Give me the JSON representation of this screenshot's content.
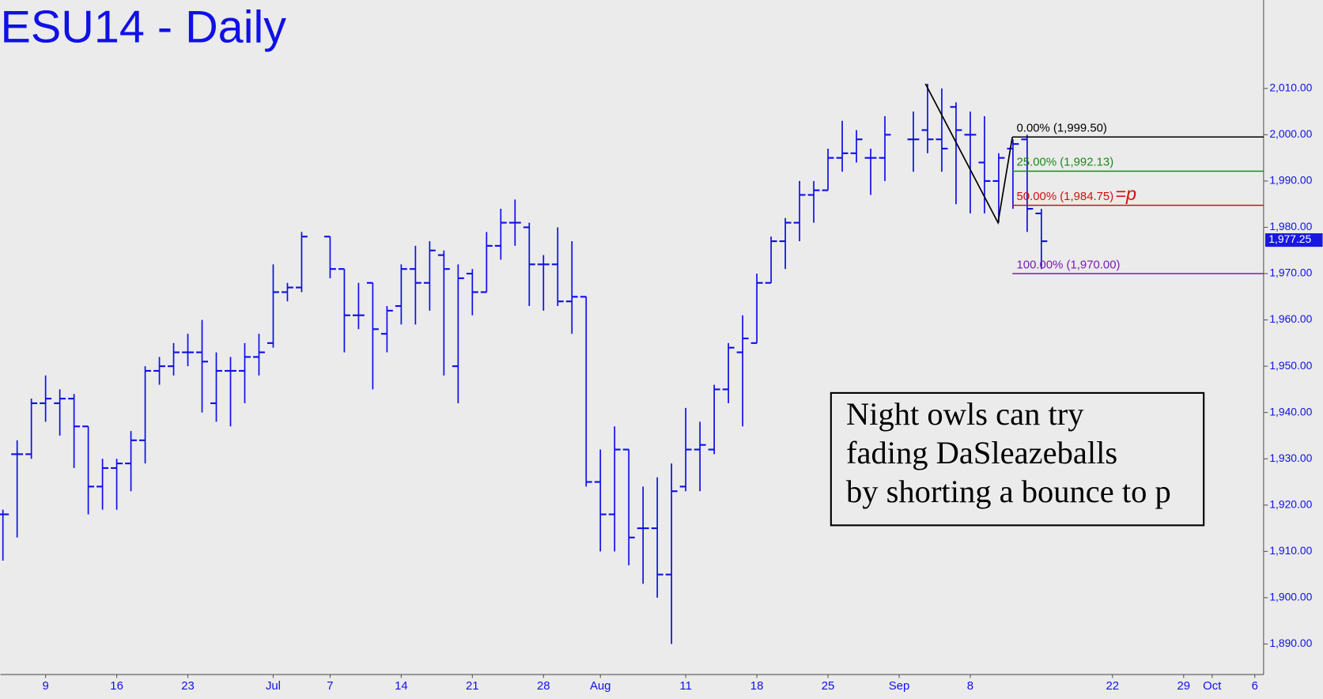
{
  "chart_data": {
    "type": "ohlc",
    "title": "ESU14 - Daily",
    "color": "#1010e8",
    "x": [
      0,
      1,
      2,
      3,
      4,
      5,
      6,
      7,
      8,
      9,
      10,
      11,
      12,
      13,
      14,
      15,
      16,
      17,
      18,
      19,
      20,
      21,
      23,
      24,
      25,
      26,
      27,
      28,
      29,
      30,
      31,
      32,
      33,
      34,
      35,
      36,
      37,
      38,
      39,
      40,
      41,
      42,
      43,
      44,
      45,
      46,
      47,
      48,
      49,
      50,
      51,
      52,
      53,
      54,
      55,
      56,
      57,
      58,
      59,
      60,
      61,
      62,
      64,
      65,
      66,
      67,
      68,
      69,
      70,
      71,
      72,
      73
    ],
    "open": [
      1918,
      1931,
      1931,
      1942,
      1942,
      1943,
      1937,
      1924,
      1928,
      1929,
      1934,
      1949,
      1950,
      1953,
      1953,
      1942,
      1949,
      1949,
      1952,
      1955,
      1966,
      1967,
      1978,
      1971,
      1961,
      1968,
      1957,
      1963,
      1971,
      1968,
      1974,
      1950,
      1970,
      1966,
      1976,
      1981,
      1980,
      1972,
      1972,
      1964,
      1965,
      1925,
      1918,
      1932,
      1915,
      1915,
      1905,
      1924,
      1932,
      1932,
      1945,
      1953,
      1955,
      1968,
      1977,
      1981,
      1987,
      1988,
      1995,
      1996,
      1995,
      1995,
      1999,
      2001,
      1999,
      2006,
      2000,
      1994,
      1990,
      1997,
      1999,
      1983
    ],
    "high": [
      1919,
      1934,
      1943,
      1948,
      1945,
      1944,
      1937,
      1930,
      1930,
      1936,
      1950,
      1952,
      1955,
      1957,
      1960,
      1953,
      1952,
      1955,
      1957,
      1972,
      1968,
      1979,
      1978,
      1971,
      1968,
      1968,
      1963,
      1972,
      1976,
      1977,
      1975,
      1972,
      1971,
      1979,
      1984,
      1986,
      1981,
      1974,
      1980,
      1977,
      1965,
      1932,
      1937,
      1932,
      1924,
      1926,
      1929,
      1941,
      1938,
      1946,
      1955,
      1961,
      1970,
      1978,
      1982,
      1990,
      1990,
      1997,
      2003,
      2001,
      1997,
      2004,
      2005,
      2011,
      2010,
      2007,
      2005,
      2004,
      1996,
      1999,
      2000,
      1984
    ],
    "low": [
      1908,
      1913,
      1930,
      1938,
      1935,
      1928,
      1918,
      1919,
      1919,
      1923,
      1929,
      1946,
      1948,
      1950,
      1940,
      1938,
      1937,
      1942,
      1948,
      1954,
      1964,
      1966,
      1969,
      1953,
      1958,
      1945,
      1953,
      1959,
      1959,
      1962,
      1948,
      1942,
      1961,
      1966,
      1973,
      1976,
      1963,
      1962,
      1963,
      1957,
      1924,
      1910,
      1910,
      1907,
      1903,
      1900,
      1890,
      1923,
      1923,
      1931,
      1942,
      1937,
      1955,
      1968,
      1971,
      1977,
      1981,
      1988,
      1992,
      1994,
      1987,
      1990,
      1992,
      1996,
      1992,
      1985,
      1983,
      1983,
      1981,
      1984,
      1979,
      1971
    ],
    "close": [
      1918,
      1931,
      1942,
      1943,
      1943,
      1937,
      1924,
      1928,
      1929,
      1934,
      1949,
      1950,
      1953,
      1953,
      1951,
      1949,
      1949,
      1952,
      1953,
      1966,
      1967,
      1978,
      1971,
      1961,
      1961,
      1958,
      1962,
      1971,
      1968,
      1975,
      1971,
      1969,
      1966,
      1976,
      1981,
      1981,
      1972,
      1972,
      1964,
      1965,
      1925,
      1918,
      1932,
      1913,
      1915,
      1905,
      1923,
      1932,
      1933,
      1945,
      1954,
      1956,
      1968,
      1977,
      1981,
      1987,
      1988,
      1995,
      1996,
      1999,
      1995,
      2000,
      1999,
      1999,
      1997,
      2001,
      2000,
      1990,
      1995,
      1998,
      1984,
      1977
    ],
    "xlim": [
      -0.178,
      88.62
    ],
    "ylim": [
      1883.4,
      2029.1
    ],
    "xticks": [
      {
        "value": 3,
        "label": "9"
      },
      {
        "value": 8,
        "label": "16"
      },
      {
        "value": 13,
        "label": "23"
      },
      {
        "value": 19,
        "label": "Jul"
      },
      {
        "value": 23,
        "label": "7"
      },
      {
        "value": 28,
        "label": "14"
      },
      {
        "value": 33,
        "label": "21"
      },
      {
        "value": 38,
        "label": "28"
      },
      {
        "value": 42,
        "label": "Aug"
      },
      {
        "value": 48,
        "label": "11"
      },
      {
        "value": 53,
        "label": "18"
      },
      {
        "value": 58,
        "label": "25"
      },
      {
        "value": 63,
        "label": "Sep"
      },
      {
        "value": 68,
        "label": "8"
      },
      {
        "value": 78,
        "label": "22"
      },
      {
        "value": 83,
        "label": "29"
      },
      {
        "value": 85,
        "label": "Oct"
      },
      {
        "value": 88,
        "label": "6"
      }
    ],
    "yticks": [
      {
        "value": 1890,
        "label": "1,890.00"
      },
      {
        "value": 1900,
        "label": "1,900.00"
      },
      {
        "value": 1910,
        "label": "1,910.00"
      },
      {
        "value": 1920,
        "label": "1,920.00"
      },
      {
        "value": 1930,
        "label": "1,930.00"
      },
      {
        "value": 1940,
        "label": "1,940.00"
      },
      {
        "value": 1950,
        "label": "1,950.00"
      },
      {
        "value": 1960,
        "label": "1,960.00"
      },
      {
        "value": 1970,
        "label": "1,970.00"
      },
      {
        "value": 1980,
        "label": "1,980.00"
      },
      {
        "value": 1990,
        "label": "1,990.00"
      },
      {
        "value": 2000,
        "label": "2,000.00"
      },
      {
        "value": 2010,
        "label": "2,010.00"
      }
    ],
    "last_price": {
      "value": 1977.25,
      "label": "1,977.25"
    },
    "fib_start": 70.96,
    "fib_levels": [
      {
        "label": "0.00% (1,999.50)",
        "value": 1999.5,
        "color": "#000000"
      },
      {
        "label": "25.00% (1,992.13)",
        "value": 1992.13,
        "color": "#1a8a1a"
      },
      {
        "label": "50.00% (1,984.75)",
        "value": 1984.75,
        "color": "#d01010",
        "suffix": "=p"
      },
      {
        "label": "100.00% (1,970.00)",
        "value": 1970.0,
        "color": "#7a1ab0"
      }
    ],
    "zigzag": {
      "x": [
        64.85,
        69.95,
        70.96
      ],
      "y": [
        2011,
        1981,
        1999.5
      ]
    },
    "annotation": [
      "Night owls can try",
      "fading DaSleazeballs",
      "by shorting a bounce to p"
    ]
  }
}
